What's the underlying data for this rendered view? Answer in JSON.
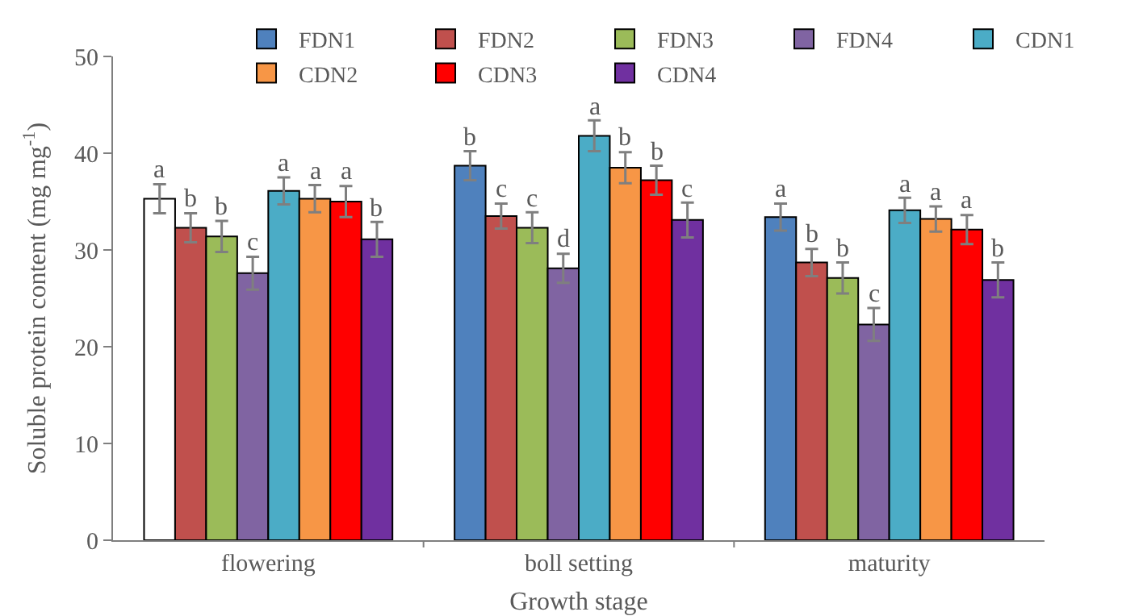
{
  "chart_data": {
    "type": "bar",
    "xlabel": "Growth stage",
    "ylabel": "Soluble protein content (mg mg$^{-1}$)",
    "categories": [
      "flowering",
      "boll setting",
      "maturity"
    ],
    "ylim": [
      0,
      50
    ],
    "yticks": [
      0,
      10,
      20,
      30,
      40,
      50
    ],
    "grid": false,
    "legend": "top",
    "series": [
      {
        "name": "FDN1",
        "color": "#4f81bd",
        "colors": [
          "#ffffff",
          "#4f81bd",
          "#4f81bd"
        ],
        "values": [
          35.3,
          38.7,
          33.4
        ],
        "errors": [
          1.5,
          1.5,
          1.4
        ],
        "value_labels": [
          "a",
          "b",
          "a"
        ]
      },
      {
        "name": "FDN2",
        "color": "#c0504d",
        "values": [
          32.3,
          33.5,
          28.7
        ],
        "errors": [
          1.5,
          1.3,
          1.4
        ],
        "value_labels": [
          "b",
          "c",
          "b"
        ]
      },
      {
        "name": "FDN3",
        "color": "#9bbb59",
        "values": [
          31.4,
          32.3,
          27.1
        ],
        "errors": [
          1.6,
          1.6,
          1.6
        ],
        "value_labels": [
          "b",
          "c",
          "b"
        ]
      },
      {
        "name": "FDN4",
        "color": "#8064a2",
        "values": [
          27.6,
          28.1,
          22.3
        ],
        "errors": [
          1.7,
          1.5,
          1.7
        ],
        "value_labels": [
          "c",
          "d",
          "c"
        ]
      },
      {
        "name": "CDN1",
        "color": "#4bacc6",
        "values": [
          36.1,
          41.8,
          34.1
        ],
        "errors": [
          1.4,
          1.6,
          1.3
        ],
        "value_labels": [
          "a",
          "a",
          "a"
        ]
      },
      {
        "name": "CDN2",
        "color": "#f79646",
        "values": [
          35.3,
          38.5,
          33.2
        ],
        "errors": [
          1.4,
          1.6,
          1.3
        ],
        "value_labels": [
          "a",
          "b",
          "a"
        ]
      },
      {
        "name": "CDN3",
        "color": "#ff0000",
        "values": [
          35.0,
          37.2,
          32.1
        ],
        "errors": [
          1.6,
          1.5,
          1.5
        ],
        "value_labels": [
          "a",
          "b",
          "a"
        ]
      },
      {
        "name": "CDN4",
        "color": "#7030a0",
        "values": [
          31.1,
          33.1,
          26.9
        ],
        "errors": [
          1.8,
          1.8,
          1.8
        ],
        "value_labels": [
          "b",
          "c",
          "b"
        ]
      }
    ]
  }
}
